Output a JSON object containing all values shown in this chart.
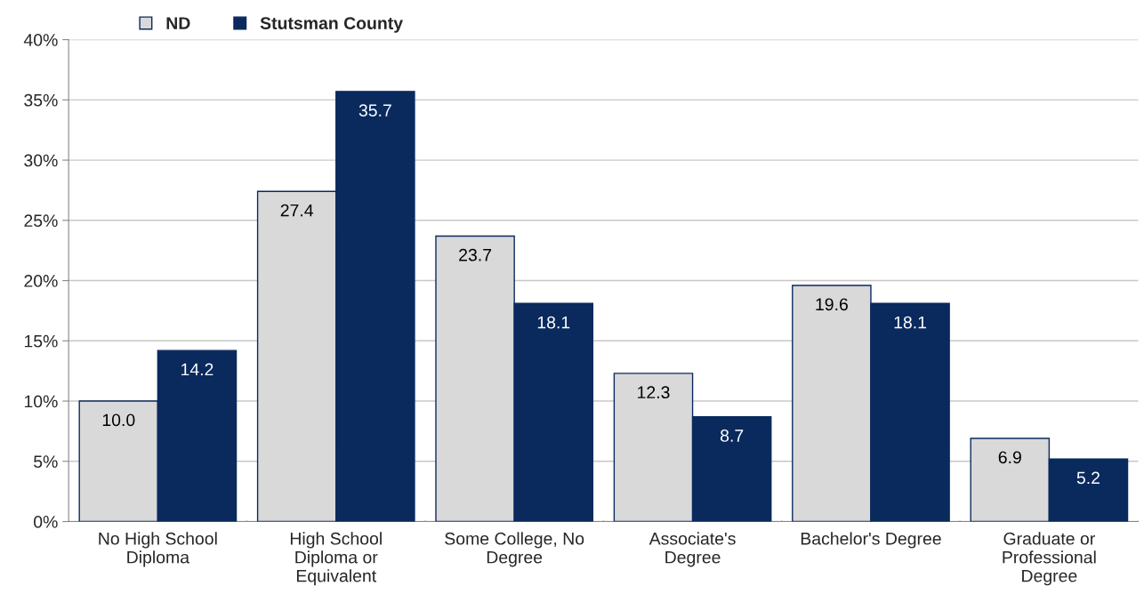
{
  "chart_data": {
    "type": "bar",
    "categories": [
      "No High School Diploma",
      "High School Diploma or Equivalent",
      "Some College, No Degree",
      "Associate's Degree",
      "Bachelor's Degree",
      "Graduate or Professional Degree"
    ],
    "series": [
      {
        "name": "ND",
        "color": "#d9d9d9",
        "values": [
          10.0,
          27.4,
          23.7,
          12.3,
          19.6,
          6.9
        ],
        "value_labels": [
          "10.0",
          "27.4",
          "23.7",
          "12.3",
          "19.6",
          "6.9"
        ]
      },
      {
        "name": "Stutsman County",
        "color": "#0a2a5e",
        "values": [
          14.2,
          35.7,
          18.1,
          8.7,
          18.1,
          5.2
        ],
        "value_labels": [
          "14.2",
          "35.7",
          "18.1",
          "8.7",
          "18.1",
          "5.2"
        ]
      }
    ],
    "ylim": [
      0,
      40
    ],
    "yticks": [
      {
        "value": 0,
        "label": "0%"
      },
      {
        "value": 5,
        "label": "5%"
      },
      {
        "value": 10,
        "label": "10%"
      },
      {
        "value": 15,
        "label": "15%"
      },
      {
        "value": 20,
        "label": "20%"
      },
      {
        "value": 25,
        "label": "25%"
      },
      {
        "value": 30,
        "label": "30%"
      },
      {
        "value": 35,
        "label": "35%"
      },
      {
        "value": 40,
        "label": "40%"
      }
    ],
    "grid": "y",
    "legend": "top left"
  }
}
